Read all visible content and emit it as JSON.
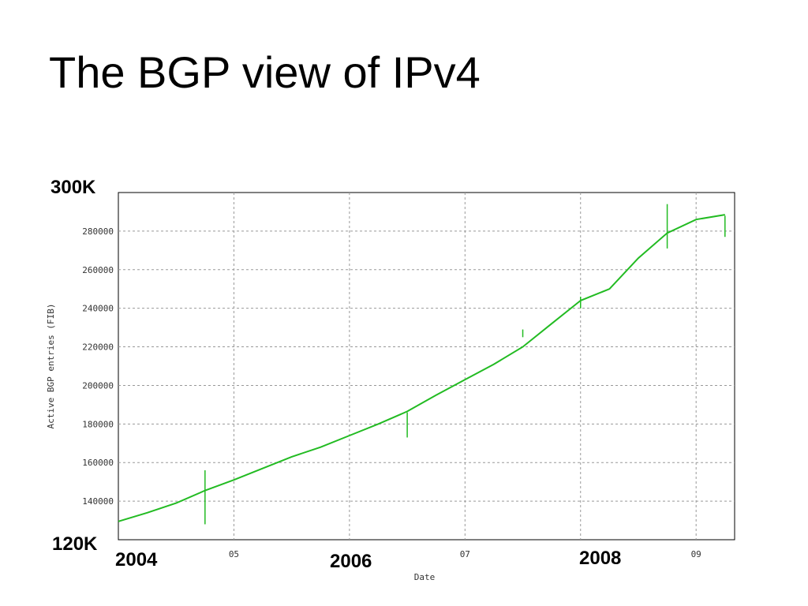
{
  "slide": {
    "title": "The BGP view of IPv4"
  },
  "annotations": {
    "y_top": "300K",
    "y_bottom": "120K",
    "years": [
      "2004",
      "2006",
      "2008"
    ]
  },
  "chart_data": {
    "type": "line",
    "title": "",
    "xlabel": "Date",
    "ylabel": "Active BGP entries (FIB)",
    "x_tick_labels": [
      "05",
      "07",
      "09"
    ],
    "y_ticks": [
      140000,
      160000,
      180000,
      200000,
      220000,
      240000,
      260000,
      280000
    ],
    "ylim": [
      120000,
      300000
    ],
    "xlim": [
      "2004-01",
      "2009-05"
    ],
    "grid": true,
    "line_color": "#22bb22",
    "series": [
      {
        "values_x": [
          "2004-01",
          "2004-04",
          "2004-07",
          "2004-10",
          "2005-01",
          "2005-04",
          "2005-07",
          "2005-10",
          "2006-01",
          "2006-04",
          "2006-07",
          "2006-10",
          "2007-01",
          "2007-04",
          "2007-07",
          "2007-10",
          "2008-01",
          "2008-04",
          "2008-07",
          "2008-10",
          "2009-01",
          "2009-04"
        ],
        "values_y": [
          129500,
          134000,
          139000,
          145500,
          151000,
          157000,
          163000,
          168000,
          174000,
          180000,
          186500,
          195000,
          203000,
          211000,
          220000,
          232000,
          244000,
          250000,
          266000,
          279000,
          286000,
          288500
        ]
      }
    ],
    "spikes": [
      {
        "x": "2004-10",
        "low": 128000,
        "high": 156000
      },
      {
        "x": "2006-07",
        "low": 173000,
        "high": 186000
      },
      {
        "x": "2007-07",
        "low": 225000,
        "high": 229000
      },
      {
        "x": "2008-01",
        "low": 240000,
        "high": 246000
      },
      {
        "x": "2008-10",
        "low": 271000,
        "high": 294000
      },
      {
        "x": "2009-04",
        "low": 277000,
        "high": 288000
      }
    ]
  }
}
